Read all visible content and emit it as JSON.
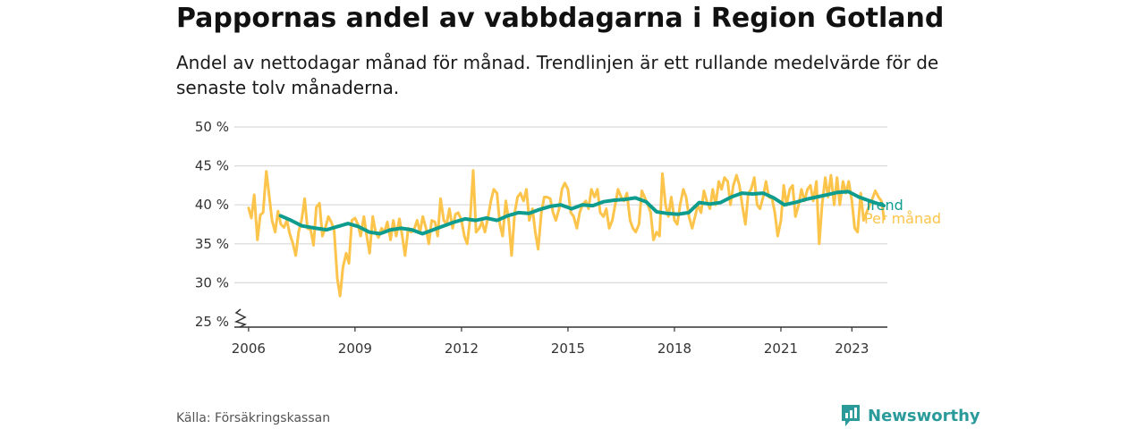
{
  "header": {
    "title": "Pappornas andel av vabbdagarna i Region Gotland",
    "subtitle": "Andel av nettodagar månad för månad. Trendlinjen är ett rullande medelvärde för de senaste tolv månaderna."
  },
  "footer": {
    "source": "Källa: Försäkringskassan",
    "brand": "Newsworthy"
  },
  "colors": {
    "trend": "#0e9c8e",
    "monthly": "#fcc44a",
    "grid": "#d9d9d9",
    "axis": "#333333",
    "brand": "#2b9a9a"
  },
  "chart_data": {
    "type": "line",
    "title": "Pappornas andel av vabbdagarna i Region Gotland",
    "xlabel": "",
    "ylabel": "",
    "xlim": [
      2005.6,
      2024.0
    ],
    "ylim": [
      25,
      50
    ],
    "y_ticks": [
      25,
      30,
      35,
      40,
      45,
      50
    ],
    "y_tick_labels": [
      "25 %",
      "30 %",
      "35 %",
      "40 %",
      "45 %",
      "50 %"
    ],
    "x_ticks": [
      2006,
      2009,
      2012,
      2015,
      2018,
      2021,
      2023
    ],
    "x_tick_labels": [
      "2006",
      "2009",
      "2012",
      "2015",
      "2018",
      "2021",
      "2023"
    ],
    "y_axis_break": true,
    "grid": true,
    "legend": "end-of-line labels, right",
    "series": [
      {
        "name": "Trend",
        "color": "#0e9c8e",
        "points": [
          [
            2006.9,
            38.6
          ],
          [
            2007.2,
            38.0
          ],
          [
            2007.5,
            37.3
          ],
          [
            2007.9,
            37.0
          ],
          [
            2008.2,
            36.8
          ],
          [
            2008.5,
            37.2
          ],
          [
            2008.8,
            37.6
          ],
          [
            2009.1,
            37.2
          ],
          [
            2009.4,
            36.5
          ],
          [
            2009.7,
            36.3
          ],
          [
            2010.0,
            36.8
          ],
          [
            2010.3,
            37.0
          ],
          [
            2010.6,
            36.8
          ],
          [
            2010.9,
            36.3
          ],
          [
            2011.2,
            36.8
          ],
          [
            2011.5,
            37.3
          ],
          [
            2011.8,
            37.8
          ],
          [
            2012.1,
            38.2
          ],
          [
            2012.4,
            38.0
          ],
          [
            2012.7,
            38.3
          ],
          [
            2013.0,
            38.0
          ],
          [
            2013.3,
            38.6
          ],
          [
            2013.6,
            39.0
          ],
          [
            2013.9,
            38.9
          ],
          [
            2014.2,
            39.4
          ],
          [
            2014.5,
            39.8
          ],
          [
            2014.8,
            40.0
          ],
          [
            2015.1,
            39.5
          ],
          [
            2015.4,
            40.0
          ],
          [
            2015.7,
            39.9
          ],
          [
            2016.0,
            40.4
          ],
          [
            2016.3,
            40.6
          ],
          [
            2016.6,
            40.7
          ],
          [
            2016.9,
            40.9
          ],
          [
            2017.2,
            40.4
          ],
          [
            2017.5,
            39.1
          ],
          [
            2017.8,
            38.9
          ],
          [
            2018.1,
            38.8
          ],
          [
            2018.4,
            39.0
          ],
          [
            2018.7,
            40.3
          ],
          [
            2019.0,
            40.1
          ],
          [
            2019.3,
            40.3
          ],
          [
            2019.6,
            41.0
          ],
          [
            2019.9,
            41.5
          ],
          [
            2020.2,
            41.4
          ],
          [
            2020.5,
            41.5
          ],
          [
            2020.8,
            40.9
          ],
          [
            2021.1,
            40.0
          ],
          [
            2021.4,
            40.3
          ],
          [
            2021.7,
            40.7
          ],
          [
            2022.0,
            41.0
          ],
          [
            2022.3,
            41.3
          ],
          [
            2022.6,
            41.6
          ],
          [
            2022.9,
            41.7
          ],
          [
            2023.2,
            41.0
          ],
          [
            2023.5,
            40.5
          ],
          [
            2023.9,
            39.9
          ]
        ]
      },
      {
        "name": "Per månad",
        "color": "#fcc44a",
        "points": [
          [
            2006.0,
            39.6
          ],
          [
            2006.08,
            38.3
          ],
          [
            2006.16,
            41.3
          ],
          [
            2006.25,
            35.5
          ],
          [
            2006.33,
            38.7
          ],
          [
            2006.41,
            39.0
          ],
          [
            2006.5,
            44.3
          ],
          [
            2006.58,
            41.2
          ],
          [
            2006.66,
            38.0
          ],
          [
            2006.75,
            36.5
          ],
          [
            2006.83,
            39.2
          ],
          [
            2006.91,
            37.5
          ],
          [
            2007.0,
            37.1
          ],
          [
            2007.08,
            38.0
          ],
          [
            2007.16,
            36.3
          ],
          [
            2007.25,
            35.0
          ],
          [
            2007.33,
            33.5
          ],
          [
            2007.41,
            36.5
          ],
          [
            2007.5,
            38.2
          ],
          [
            2007.58,
            40.8
          ],
          [
            2007.66,
            37.0
          ],
          [
            2007.75,
            36.8
          ],
          [
            2007.83,
            34.8
          ],
          [
            2007.91,
            39.7
          ],
          [
            2008.0,
            40.2
          ],
          [
            2008.08,
            36.0
          ],
          [
            2008.16,
            37.0
          ],
          [
            2008.25,
            38.5
          ],
          [
            2008.33,
            37.8
          ],
          [
            2008.41,
            36.8
          ],
          [
            2008.5,
            30.5
          ],
          [
            2008.58,
            28.3
          ],
          [
            2008.66,
            32.0
          ],
          [
            2008.75,
            33.8
          ],
          [
            2008.83,
            32.5
          ],
          [
            2008.91,
            38.0
          ],
          [
            2009.0,
            38.3
          ],
          [
            2009.08,
            37.5
          ],
          [
            2009.16,
            36.0
          ],
          [
            2009.25,
            38.5
          ],
          [
            2009.33,
            36.0
          ],
          [
            2009.41,
            33.8
          ],
          [
            2009.5,
            38.5
          ],
          [
            2009.58,
            36.5
          ],
          [
            2009.66,
            35.8
          ],
          [
            2009.75,
            37.0
          ],
          [
            2009.83,
            36.5
          ],
          [
            2009.91,
            37.8
          ],
          [
            2010.0,
            35.5
          ],
          [
            2010.08,
            38.0
          ],
          [
            2010.16,
            36.0
          ],
          [
            2010.25,
            38.2
          ],
          [
            2010.33,
            36.0
          ],
          [
            2010.41,
            33.5
          ],
          [
            2010.5,
            37.0
          ],
          [
            2010.58,
            36.5
          ],
          [
            2010.66,
            36.8
          ],
          [
            2010.75,
            38.0
          ],
          [
            2010.83,
            36.5
          ],
          [
            2010.91,
            38.5
          ],
          [
            2011.0,
            37.0
          ],
          [
            2011.08,
            35.0
          ],
          [
            2011.16,
            38.0
          ],
          [
            2011.25,
            37.8
          ],
          [
            2011.33,
            36.0
          ],
          [
            2011.41,
            40.8
          ],
          [
            2011.5,
            38.0
          ],
          [
            2011.58,
            37.5
          ],
          [
            2011.66,
            39.5
          ],
          [
            2011.75,
            37.0
          ],
          [
            2011.83,
            38.8
          ],
          [
            2011.91,
            39.0
          ],
          [
            2012.0,
            38.0
          ],
          [
            2012.08,
            36.0
          ],
          [
            2012.16,
            35.0
          ],
          [
            2012.25,
            38.5
          ],
          [
            2012.33,
            44.4
          ],
          [
            2012.41,
            36.5
          ],
          [
            2012.5,
            37.0
          ],
          [
            2012.58,
            37.8
          ],
          [
            2012.66,
            36.5
          ],
          [
            2012.75,
            38.5
          ],
          [
            2012.83,
            40.5
          ],
          [
            2012.91,
            42.0
          ],
          [
            2013.0,
            41.5
          ],
          [
            2013.08,
            37.5
          ],
          [
            2013.16,
            36.0
          ],
          [
            2013.25,
            40.5
          ],
          [
            2013.33,
            38.0
          ],
          [
            2013.41,
            33.5
          ],
          [
            2013.5,
            39.0
          ],
          [
            2013.58,
            41.0
          ],
          [
            2013.66,
            41.5
          ],
          [
            2013.75,
            40.5
          ],
          [
            2013.83,
            42.0
          ],
          [
            2013.91,
            38.0
          ],
          [
            2014.0,
            39.5
          ],
          [
            2014.08,
            36.5
          ],
          [
            2014.16,
            34.3
          ],
          [
            2014.25,
            39.0
          ],
          [
            2014.33,
            41.0
          ],
          [
            2014.41,
            41.0
          ],
          [
            2014.5,
            40.8
          ],
          [
            2014.58,
            39.0
          ],
          [
            2014.66,
            38.0
          ],
          [
            2014.75,
            39.5
          ],
          [
            2014.83,
            42.0
          ],
          [
            2014.91,
            42.8
          ],
          [
            2015.0,
            42.0
          ],
          [
            2015.08,
            39.0
          ],
          [
            2015.16,
            38.5
          ],
          [
            2015.25,
            37.0
          ],
          [
            2015.33,
            39.0
          ],
          [
            2015.41,
            40.0
          ],
          [
            2015.5,
            40.5
          ],
          [
            2015.58,
            39.5
          ],
          [
            2015.66,
            42.0
          ],
          [
            2015.75,
            41.0
          ],
          [
            2015.83,
            42.0
          ],
          [
            2015.91,
            39.0
          ],
          [
            2016.0,
            38.5
          ],
          [
            2016.08,
            39.5
          ],
          [
            2016.16,
            37.0
          ],
          [
            2016.25,
            38.0
          ],
          [
            2016.33,
            40.0
          ],
          [
            2016.41,
            42.0
          ],
          [
            2016.5,
            41.0
          ],
          [
            2016.58,
            40.5
          ],
          [
            2016.66,
            41.5
          ],
          [
            2016.75,
            38.0
          ],
          [
            2016.83,
            37.0
          ],
          [
            2016.91,
            36.5
          ],
          [
            2017.0,
            37.5
          ],
          [
            2017.08,
            41.8
          ],
          [
            2017.16,
            41.0
          ],
          [
            2017.25,
            40.0
          ],
          [
            2017.33,
            39.0
          ],
          [
            2017.41,
            35.5
          ],
          [
            2017.5,
            36.5
          ],
          [
            2017.58,
            36.0
          ],
          [
            2017.66,
            44.0
          ],
          [
            2017.75,
            40.0
          ],
          [
            2017.83,
            38.5
          ],
          [
            2017.91,
            41.0
          ],
          [
            2018.0,
            38.0
          ],
          [
            2018.08,
            37.5
          ],
          [
            2018.16,
            40.0
          ],
          [
            2018.25,
            42.0
          ],
          [
            2018.33,
            41.0
          ],
          [
            2018.41,
            38.5
          ],
          [
            2018.5,
            37.0
          ],
          [
            2018.58,
            38.5
          ],
          [
            2018.66,
            40.0
          ],
          [
            2018.75,
            39.0
          ],
          [
            2018.83,
            41.8
          ],
          [
            2018.91,
            40.5
          ],
          [
            2019.0,
            39.5
          ],
          [
            2019.08,
            42.0
          ],
          [
            2019.16,
            40.0
          ],
          [
            2019.25,
            43.0
          ],
          [
            2019.33,
            42.0
          ],
          [
            2019.41,
            43.5
          ],
          [
            2019.5,
            43.0
          ],
          [
            2019.58,
            40.0
          ],
          [
            2019.66,
            42.5
          ],
          [
            2019.75,
            43.8
          ],
          [
            2019.83,
            42.5
          ],
          [
            2019.91,
            40.0
          ],
          [
            2020.0,
            37.5
          ],
          [
            2020.08,
            41.5
          ],
          [
            2020.16,
            42.0
          ],
          [
            2020.25,
            43.5
          ],
          [
            2020.33,
            40.0
          ],
          [
            2020.41,
            39.5
          ],
          [
            2020.5,
            41.0
          ],
          [
            2020.58,
            43.0
          ],
          [
            2020.66,
            41.0
          ],
          [
            2020.75,
            40.8
          ],
          [
            2020.83,
            39.0
          ],
          [
            2020.91,
            36.0
          ],
          [
            2021.0,
            38.0
          ],
          [
            2021.08,
            42.5
          ],
          [
            2021.16,
            40.0
          ],
          [
            2021.25,
            42.0
          ],
          [
            2021.33,
            42.5
          ],
          [
            2021.41,
            38.5
          ],
          [
            2021.5,
            40.0
          ],
          [
            2021.58,
            42.0
          ],
          [
            2021.66,
            40.5
          ],
          [
            2021.75,
            42.0
          ],
          [
            2021.83,
            42.5
          ],
          [
            2021.91,
            40.5
          ],
          [
            2022.0,
            43.0
          ],
          [
            2022.08,
            35.0
          ],
          [
            2022.16,
            40.0
          ],
          [
            2022.25,
            43.5
          ],
          [
            2022.33,
            41.0
          ],
          [
            2022.41,
            43.8
          ],
          [
            2022.5,
            40.0
          ],
          [
            2022.58,
            43.5
          ],
          [
            2022.66,
            40.0
          ],
          [
            2022.75,
            43.0
          ],
          [
            2022.83,
            41.5
          ],
          [
            2022.91,
            43.0
          ],
          [
            2023.0,
            40.5
          ],
          [
            2023.08,
            37.0
          ],
          [
            2023.16,
            36.5
          ],
          [
            2023.25,
            41.5
          ],
          [
            2023.33,
            38.0
          ],
          [
            2023.41,
            39.0
          ],
          [
            2023.5,
            40.0
          ],
          [
            2023.58,
            40.8
          ],
          [
            2023.66,
            41.8
          ],
          [
            2023.75,
            41.0
          ],
          [
            2023.83,
            40.5
          ],
          [
            2023.91,
            38.2
          ]
        ]
      }
    ]
  }
}
